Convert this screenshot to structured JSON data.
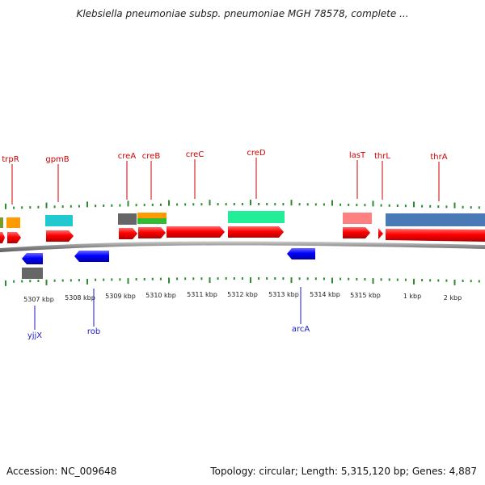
{
  "title": "Klebsiella pneumoniae subsp. pneumoniae MGH 78578, complete ...",
  "footer": {
    "accession": "Accession: NC_009648",
    "topology": "Topology: circular; Length: 5,315,120 bp; Genes: 4,887"
  },
  "colors": {
    "backbone": "#8a8a8a",
    "tick": "#2e8b2e",
    "forward_gene": "#ff0000",
    "reverse_gene": "#0000ff",
    "forward_label": "#cc0000",
    "reverse_label": "#1a1acc"
  },
  "scale_labels": [
    "5307 kbp",
    "5308 kbp",
    "5309 kbp",
    "5310 kbp",
    "5311 kbp",
    "5312 kbp",
    "5313 kbp",
    "5314 kbp",
    "5315 kbp",
    "1 kbp",
    "2 kbp"
  ],
  "forward_genes": [
    "trpR",
    "gpmB",
    "creA",
    "creB",
    "creC",
    "creD",
    "lasT",
    "thrL",
    "thrA"
  ],
  "reverse_genes": [
    "yjjX",
    "rob",
    "arcA"
  ]
}
